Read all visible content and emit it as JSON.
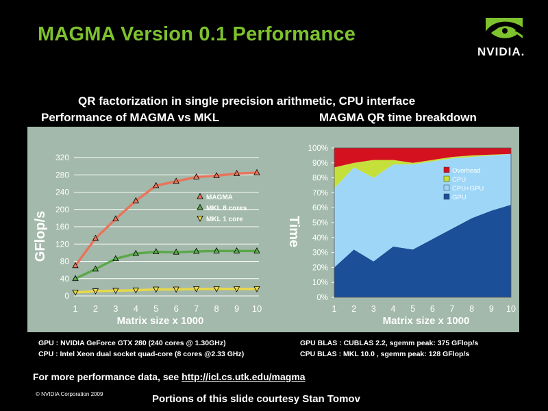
{
  "slide": {
    "title": "MAGMA Version 0.1 Performance",
    "logo_text": "NVIDIA.",
    "subtitle": "QR factorization in single precision arithmetic, CPU interface",
    "specs_left": [
      "GPU : NVIDIA GeForce GTX 280  (240 cores @ 1.30GHz)",
      "CPU : Intel Xeon dual socket quad-core (8 cores @2.33 GHz)"
    ],
    "specs_right": [
      "GPU BLAS :  CUBLAS 2.2, sgemm peak:  375 GFlop/s",
      "CPU BLAS :  MKL 10.0     , sgemm peak:  128 GFlop/s"
    ],
    "more_perf_prefix": "For more performance data, see ",
    "more_perf_link": "http://icl.cs.utk.edu/magma",
    "copyright": "© NVIDIA Corporation 2009",
    "courtesy": "Portions of this slide courtesy Stan Tomov"
  },
  "colors": {
    "title": "#7ec22e",
    "panel": "#a3b9ab",
    "magma": "#e8745a",
    "mkl8": "#5aa84a",
    "mkl1": "#e8d84a",
    "overhead": "#d4111f",
    "cpu": "#c5e03a",
    "cpugpu": "#9ed6f7",
    "gpu": "#1b4f98"
  },
  "chart_data": [
    {
      "type": "line",
      "title": "Performance of MAGMA vs MKL",
      "xlabel": "Matrix size x 1000",
      "ylabel": "GFlop/s",
      "x": [
        1,
        2,
        3,
        4,
        5,
        6,
        7,
        8,
        9,
        10
      ],
      "xticks": [
        "1",
        "2",
        "3",
        "4",
        "5",
        "6",
        "7",
        "8",
        "9",
        "10"
      ],
      "yticks": [
        "0",
        "40",
        "80",
        "120",
        "160",
        "200",
        "240",
        "280",
        "320"
      ],
      "ylim": [
        0,
        320
      ],
      "grid": true,
      "legend_position": "center-right",
      "series": [
        {
          "name": "MAGMA",
          "values": [
            70,
            133,
            178,
            220,
            255,
            265,
            275,
            278,
            283,
            285
          ]
        },
        {
          "name": "MKL 8 cores",
          "values": [
            40,
            62,
            86,
            98,
            102,
            101,
            103,
            104,
            104,
            104
          ]
        },
        {
          "name": "MKL 1 core",
          "values": [
            8,
            11,
            12,
            13,
            15,
            15,
            16,
            16,
            16,
            16
          ]
        }
      ]
    },
    {
      "type": "area",
      "title": "MAGMA QR time breakdown",
      "xlabel": "Matrix size x 1000",
      "ylabel": "Time",
      "x": [
        1,
        2,
        3,
        4,
        5,
        6,
        7,
        8,
        9,
        10
      ],
      "xticks": [
        "1",
        "2",
        "3",
        "4",
        "5",
        "6",
        "7",
        "8",
        "9",
        "10"
      ],
      "yticks": [
        "0%",
        "10%",
        "20%",
        "30%",
        "40%",
        "50%",
        "60%",
        "70%",
        "80%",
        "90%",
        "100%"
      ],
      "ylim": [
        0,
        100
      ],
      "stacked": true,
      "legend_position": "top-right",
      "series": [
        {
          "name": "GPU",
          "values": [
            20,
            32,
            24,
            34,
            32,
            39,
            46,
            53,
            58,
            62
          ]
        },
        {
          "name": "CPU+GPU",
          "values": [
            53,
            55,
            56,
            55,
            57,
            52,
            47,
            41,
            37,
            34
          ]
        },
        {
          "name": "CPU",
          "values": [
            14,
            3,
            12,
            3,
            1,
            1,
            1,
            1,
            0.5,
            0
          ]
        },
        {
          "name": "Overhead",
          "values": [
            13,
            10,
            8,
            8,
            10,
            8,
            6,
            5,
            4.5,
            4
          ]
        }
      ]
    }
  ]
}
